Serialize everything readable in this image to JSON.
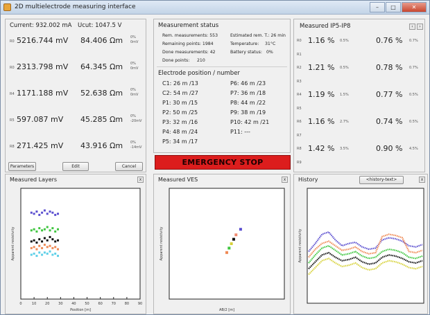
{
  "window": {
    "title": "2D multielectrode measuring interface"
  },
  "left": {
    "current": "Current: 932.002 mA",
    "ucut": "Ucut: 1047.5 V",
    "rows": [
      {
        "label": "R0",
        "voltage": "5216.744 mV",
        "resist": "84.406 Ωm",
        "pct": "0%",
        "unit": "0mV"
      },
      {
        "label": "R0",
        "voltage": "2313.798 mV",
        "resist": "64.345 Ωm",
        "pct": "0%",
        "unit": "0mV"
      },
      {
        "label": "R4",
        "voltage": "1171.188 mV",
        "resist": "52.638 Ωm",
        "pct": "0%",
        "unit": "0mV"
      },
      {
        "label": "R5",
        "voltage": "597.087 mV",
        "resist": "45.285 Ωm",
        "pct": "0%",
        "unit": "-20mV"
      },
      {
        "label": "R8",
        "voltage": "271.425 mV",
        "resist": "43.916 Ωm",
        "pct": "0%",
        "unit": "-14mV"
      }
    ],
    "buttons": {
      "parameters": "Parameters",
      "edit": "Edit",
      "cancel": "Cancel"
    }
  },
  "status": {
    "heading": "Measurement status",
    "rem_measurements": "Rem. measurements: 553",
    "estimated": "Estimated rem. T.: 26 min",
    "remaining_points": "Remaining points: 1984",
    "temperature": "Temperature:",
    "temperature_value": "31°C",
    "done_measurements": "Done measurements: 42",
    "battery": "Battery status:",
    "battery_value": "0%",
    "done_points": "Done points:",
    "done_points_value": "210"
  },
  "electrodes": {
    "heading": "Electrode position / number",
    "left": [
      "C1:  26 m  /13",
      "C2:  54 m  /27",
      "P1:  30 m  /15",
      "P2:  50 m  /25",
      "P3:  32 m  /16",
      "P4:  48 m  /24",
      "P5:  34 m  /17"
    ],
    "right": [
      "P6:  46 m  /23",
      "P7:  36 m  /18",
      "P8:  44 m  /22",
      "P9:  38 m  /19",
      "P10:  42 m  /21",
      "P11:  ---"
    ]
  },
  "emergency": {
    "label": "EMERGENCY STOP"
  },
  "ip": {
    "heading": "Measured IP5-IP8",
    "rows": [
      {
        "r": "R0",
        "a": "1.16 %",
        "as": "0.5%",
        "b": "0.76 %",
        "bs": "0.7%"
      },
      {
        "r": "R1"
      },
      {
        "r": "R2",
        "a": "1.21 %",
        "as": "0.5%",
        "b": "0.78 %",
        "bs": "0.7%"
      },
      {
        "r": "R3"
      },
      {
        "r": "R4",
        "a": "1.19 %",
        "as": "1.5%",
        "b": "0.77 %",
        "bs": "0.5%"
      },
      {
        "r": "R5"
      },
      {
        "r": "R6",
        "a": "1.16 %",
        "as": "2.7%",
        "b": "0.74 %",
        "bs": "0.5%"
      },
      {
        "r": "R7"
      },
      {
        "r": "R8",
        "a": "1.42 %",
        "as": "3.5%",
        "b": "0.90 %",
        "bs": "4.5%"
      },
      {
        "r": "R9"
      }
    ]
  },
  "graphs": {
    "layers": {
      "title": "Measured Layers",
      "xlabel": "Position [m]",
      "ylabel": "Apparent resistivity",
      "xticks": [
        "0",
        "10",
        "20",
        "30",
        "40",
        "50",
        "60",
        "70",
        "80",
        "90"
      ]
    },
    "ves": {
      "title": "Measured VES",
      "xlabel": "AB/2 [m]",
      "ylabel": "Apparent resistivity"
    },
    "history": {
      "title": "History",
      "dropdown": "<history-text>",
      "ylabel": "Apparent resistivity"
    }
  },
  "colors": {
    "purple": "#5b4fd0",
    "green": "#3fc63f",
    "black": "#111111",
    "orange": "#ef8a55",
    "cyan": "#5fd0e8",
    "salmon": "#f08a70",
    "yellow": "#d7d23a"
  },
  "chart_data": [
    {
      "type": "scatter",
      "title": "Measured Layers",
      "xlabel": "Position [m]",
      "ylabel": "Apparent resistivity",
      "xlim": [
        0,
        90
      ],
      "series": [
        {
          "color": "#5b4fd0",
          "x": [
            8,
            10,
            12,
            14,
            16,
            18,
            20,
            22,
            24,
            26,
            28
          ],
          "y": [
            78,
            77,
            79,
            76,
            78,
            80,
            77,
            79,
            78,
            76,
            77
          ]
        },
        {
          "color": "#3fc63f",
          "x": [
            8,
            10,
            12,
            14,
            16,
            18,
            20,
            22,
            24,
            26,
            28
          ],
          "y": [
            62,
            63,
            61,
            64,
            62,
            63,
            65,
            62,
            64,
            61,
            63
          ]
        },
        {
          "color": "#111111",
          "x": [
            8,
            10,
            12,
            14,
            16,
            18,
            20,
            22,
            24,
            26,
            28
          ],
          "y": [
            52,
            53,
            51,
            54,
            52,
            55,
            53,
            56,
            54,
            52,
            53
          ]
        },
        {
          "color": "#ef8a55",
          "x": [
            8,
            10,
            12,
            14,
            16,
            18,
            20,
            22,
            24,
            26,
            28
          ],
          "y": [
            46,
            47,
            45,
            48,
            46,
            49,
            47,
            48,
            46,
            47,
            45
          ]
        },
        {
          "color": "#5fd0e8",
          "x": [
            8,
            10,
            12,
            14,
            16,
            18,
            20,
            22,
            24,
            26,
            28
          ],
          "y": [
            40,
            41,
            39,
            42,
            40,
            42,
            41,
            43,
            40,
            41,
            39
          ]
        }
      ]
    },
    {
      "type": "scatter",
      "title": "Measured VES",
      "xlabel": "AB/2 [m]",
      "ylabel": "Apparent resistivity",
      "series": [
        {
          "color": "#5b4fd0",
          "x": [
            62
          ],
          "y": [
            63
          ]
        },
        {
          "color": "#f08a70",
          "x": [
            58
          ],
          "y": [
            58
          ]
        },
        {
          "color": "#111111",
          "x": [
            56
          ],
          "y": [
            54
          ]
        },
        {
          "color": "#d7d23a",
          "x": [
            54
          ],
          "y": [
            50
          ]
        },
        {
          "color": "#3fc63f",
          "x": [
            52
          ],
          "y": [
            46
          ]
        },
        {
          "color": "#ef8a55",
          "x": [
            50
          ],
          "y": [
            42
          ]
        }
      ]
    },
    {
      "type": "line",
      "title": "History",
      "ylabel": "Apparent resistivity",
      "series": [
        {
          "color": "#5b4fd0",
          "y": [
            45,
            52,
            60,
            62,
            55,
            50,
            52,
            53,
            49,
            47,
            48,
            55,
            57,
            56,
            54,
            50,
            49,
            51
          ]
        },
        {
          "color": "#ef8a55",
          "y": [
            40,
            47,
            52,
            54,
            50,
            46,
            47,
            49,
            45,
            43,
            44,
            58,
            60,
            59,
            57,
            45,
            44,
            46
          ]
        },
        {
          "color": "#3fc63f",
          "y": [
            35,
            42,
            48,
            50,
            46,
            42,
            43,
            45,
            41,
            39,
            40,
            45,
            47,
            46,
            44,
            40,
            39,
            41
          ]
        },
        {
          "color": "#111111",
          "y": [
            30,
            36,
            42,
            44,
            40,
            37,
            38,
            40,
            36,
            34,
            35,
            40,
            42,
            41,
            39,
            36,
            35,
            37
          ]
        },
        {
          "color": "#d7d23a",
          "y": [
            25,
            31,
            37,
            39,
            35,
            32,
            33,
            35,
            31,
            29,
            30,
            35,
            37,
            36,
            34,
            31,
            30,
            32
          ]
        }
      ]
    }
  ]
}
